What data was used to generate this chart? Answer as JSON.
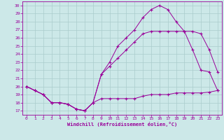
{
  "xlabel": "Windchill (Refroidissement éolien,°C)",
  "bg_color": "#cce8e8",
  "line_color": "#990099",
  "grid_color": "#aacccc",
  "xlim": [
    -0.5,
    23.5
  ],
  "ylim": [
    16.5,
    30.5
  ],
  "xticks": [
    0,
    1,
    2,
    3,
    4,
    5,
    6,
    7,
    8,
    9,
    10,
    11,
    12,
    13,
    14,
    15,
    16,
    17,
    18,
    19,
    20,
    21,
    22,
    23
  ],
  "yticks": [
    17,
    18,
    19,
    20,
    21,
    22,
    23,
    24,
    25,
    26,
    27,
    28,
    29,
    30
  ],
  "line1_x": [
    0,
    1,
    2,
    3,
    4,
    5,
    6,
    7,
    8,
    9,
    10,
    11,
    12,
    13,
    14,
    15,
    16,
    17,
    18,
    19,
    20,
    21,
    22,
    23
  ],
  "line1_y": [
    20.0,
    19.5,
    19.0,
    18.0,
    18.0,
    17.8,
    17.2,
    17.0,
    18.0,
    18.5,
    18.5,
    18.5,
    18.5,
    18.5,
    18.8,
    19.0,
    19.0,
    19.0,
    19.2,
    19.2,
    19.2,
    19.2,
    19.3,
    19.5
  ],
  "line2_x": [
    0,
    1,
    2,
    3,
    4,
    5,
    6,
    7,
    8,
    9,
    10,
    11,
    12,
    13,
    14,
    15,
    16,
    17,
    18,
    19,
    20,
    21,
    22,
    23
  ],
  "line2_y": [
    20.0,
    19.5,
    19.0,
    18.0,
    18.0,
    17.8,
    17.2,
    17.0,
    18.0,
    21.5,
    22.5,
    23.5,
    24.5,
    25.5,
    26.5,
    26.8,
    26.8,
    26.8,
    26.8,
    26.8,
    26.8,
    26.5,
    24.5,
    21.8
  ],
  "line3_x": [
    0,
    1,
    2,
    3,
    4,
    5,
    6,
    7,
    8,
    9,
    10,
    11,
    12,
    13,
    14,
    15,
    16,
    17,
    18,
    19,
    20,
    21,
    22,
    23
  ],
  "line3_y": [
    20.0,
    19.5,
    19.0,
    18.0,
    18.0,
    17.8,
    17.2,
    17.0,
    18.0,
    21.5,
    23.0,
    25.0,
    26.0,
    27.0,
    28.5,
    29.5,
    30.0,
    29.5,
    28.0,
    26.8,
    24.5,
    22.0,
    21.8,
    19.5
  ]
}
